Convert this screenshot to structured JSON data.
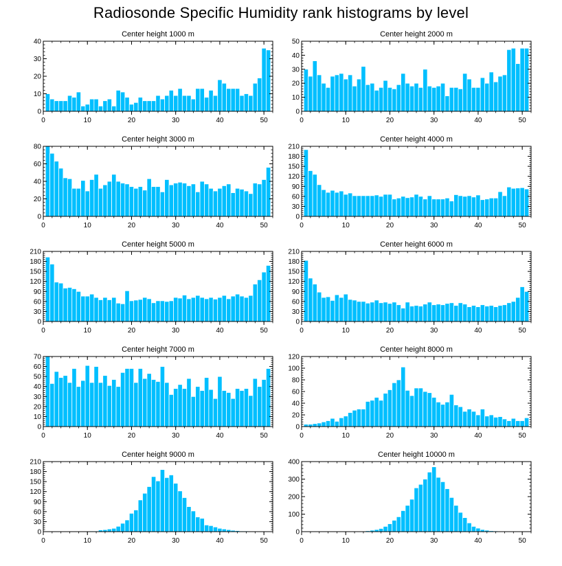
{
  "title": "Radiosonde Specific Humidity rank histograms by level",
  "colors": {
    "bar": "#00bfff",
    "bar_edge": "#ffffff",
    "axis": "#000000"
  },
  "chart_data": [
    {
      "type": "bar",
      "title": "Center height 1000 m",
      "ylim": [
        0,
        40
      ],
      "yticks": [
        0,
        10,
        20,
        30,
        40
      ],
      "xticks": [
        0,
        10,
        20,
        30,
        40,
        50
      ],
      "values": [
        10,
        7,
        6,
        6,
        6,
        9,
        8,
        11,
        3,
        4,
        7,
        7,
        3,
        6,
        7,
        3,
        12,
        11,
        8,
        4,
        5,
        8,
        6,
        6,
        6,
        9,
        7,
        9,
        12,
        9,
        13,
        9,
        9,
        7,
        13,
        13,
        8,
        12,
        9,
        18,
        16,
        13,
        13,
        13,
        9,
        10,
        9,
        16,
        19,
        36,
        35
      ]
    },
    {
      "type": "bar",
      "title": "Center height 2000 m",
      "ylim": [
        0,
        50
      ],
      "yticks": [
        0,
        10,
        20,
        30,
        40,
        50
      ],
      "xticks": [
        0,
        10,
        20,
        30,
        40,
        50
      ],
      "values": [
        30,
        25,
        36,
        26,
        20,
        17,
        25,
        26,
        27,
        23,
        26,
        18,
        23,
        32,
        19,
        20,
        15,
        17,
        22,
        17,
        16,
        19,
        27,
        20,
        18,
        20,
        17,
        30,
        18,
        17,
        18,
        20,
        11,
        17,
        17,
        16,
        27,
        23,
        17,
        17,
        24,
        20,
        28,
        21,
        25,
        26,
        44,
        45,
        34,
        45,
        45
      ]
    },
    {
      "type": "bar",
      "title": "Center height 3000 m",
      "ylim": [
        0,
        80
      ],
      "yticks": [
        0,
        20,
        40,
        60,
        80
      ],
      "xticks": [
        0,
        10,
        20,
        30,
        40,
        50
      ],
      "values": [
        80,
        72,
        63,
        55,
        44,
        43,
        32,
        32,
        41,
        29,
        42,
        48,
        32,
        36,
        40,
        48,
        40,
        38,
        37,
        34,
        32,
        34,
        30,
        43,
        34,
        34,
        28,
        42,
        36,
        38,
        39,
        38,
        35,
        37,
        28,
        40,
        37,
        32,
        29,
        32,
        35,
        37,
        27,
        32,
        31,
        29,
        26,
        38,
        37,
        42,
        56
      ]
    },
    {
      "type": "bar",
      "title": "Center height 4000 m",
      "ylim": [
        0,
        210
      ],
      "yticks": [
        0,
        30,
        60,
        90,
        120,
        150,
        180,
        210
      ],
      "xticks": [
        0,
        10,
        20,
        30,
        40,
        50
      ],
      "values": [
        200,
        137,
        126,
        95,
        80,
        72,
        78,
        72,
        76,
        66,
        70,
        62,
        62,
        62,
        62,
        62,
        64,
        60,
        66,
        66,
        52,
        55,
        60,
        56,
        58,
        66,
        60,
        52,
        62,
        52,
        52,
        52,
        55,
        46,
        65,
        62,
        60,
        62,
        58,
        64,
        50,
        52,
        55,
        55,
        74,
        62,
        88,
        84,
        85,
        86,
        82
      ]
    },
    {
      "type": "bar",
      "title": "Center height 5000 m",
      "ylim": [
        0,
        210
      ],
      "yticks": [
        0,
        30,
        60,
        90,
        120,
        150,
        180,
        210
      ],
      "xticks": [
        0,
        10,
        20,
        30,
        40,
        50
      ],
      "values": [
        193,
        172,
        118,
        115,
        100,
        102,
        98,
        90,
        76,
        76,
        82,
        72,
        65,
        72,
        65,
        72,
        55,
        53,
        92,
        62,
        64,
        66,
        72,
        68,
        56,
        62,
        62,
        60,
        62,
        72,
        70,
        79,
        68,
        72,
        78,
        72,
        68,
        72,
        67,
        72,
        78,
        68,
        76,
        82,
        76,
        72,
        78,
        112,
        125,
        148,
        168
      ]
    },
    {
      "type": "bar",
      "title": "Center height 6000 m",
      "ylim": [
        0,
        210
      ],
      "yticks": [
        0,
        30,
        60,
        90,
        120,
        150,
        180,
        210
      ],
      "xticks": [
        0,
        10,
        20,
        30,
        40,
        50
      ],
      "values": [
        183,
        130,
        112,
        88,
        72,
        74,
        63,
        80,
        72,
        82,
        66,
        64,
        60,
        60,
        55,
        58,
        64,
        56,
        58,
        54,
        58,
        50,
        40,
        58,
        46,
        48,
        46,
        52,
        58,
        50,
        52,
        50,
        54,
        56,
        48,
        56,
        52,
        44,
        48,
        44,
        50,
        46,
        48,
        44,
        48,
        50,
        56,
        60,
        72,
        104,
        90
      ]
    },
    {
      "type": "bar",
      "title": "Center height 7000 m",
      "ylim": [
        0,
        70
      ],
      "yticks": [
        0,
        10,
        20,
        30,
        40,
        50,
        60,
        70
      ],
      "xticks": [
        0,
        10,
        20,
        30,
        40,
        50
      ],
      "values": [
        70,
        43,
        55,
        49,
        51,
        44,
        58,
        40,
        46,
        61,
        44,
        60,
        44,
        51,
        41,
        47,
        40,
        54,
        58,
        58,
        44,
        58,
        48,
        53,
        47,
        45,
        60,
        44,
        32,
        38,
        42,
        38,
        48,
        30,
        40,
        36,
        49,
        37,
        28,
        50,
        36,
        34,
        28,
        38,
        36,
        38,
        31,
        48,
        40,
        47,
        58
      ]
    },
    {
      "type": "bar",
      "title": "Center height 8000 m",
      "ylim": [
        0,
        120
      ],
      "yticks": [
        0,
        20,
        40,
        60,
        80,
        100,
        120
      ],
      "xticks": [
        0,
        10,
        20,
        30,
        40,
        50
      ],
      "values": [
        4,
        4,
        5,
        6,
        8,
        10,
        14,
        9,
        15,
        18,
        24,
        28,
        30,
        30,
        43,
        45,
        50,
        45,
        57,
        63,
        75,
        80,
        102,
        62,
        53,
        66,
        66,
        60,
        58,
        50,
        42,
        38,
        42,
        55,
        37,
        34,
        26,
        30,
        26,
        20,
        30,
        18,
        20,
        16,
        17,
        13,
        10,
        14,
        10,
        10,
        15
      ]
    },
    {
      "type": "bar",
      "title": "Center height 9000 m",
      "ylim": [
        0,
        210
      ],
      "yticks": [
        0,
        30,
        60,
        90,
        120,
        150,
        180,
        210
      ],
      "xticks": [
        0,
        10,
        20,
        30,
        40,
        50
      ],
      "values": [
        0,
        0,
        0,
        0,
        0,
        0,
        0,
        0,
        1,
        1,
        2,
        2,
        5,
        6,
        8,
        10,
        16,
        25,
        35,
        55,
        65,
        95,
        115,
        135,
        165,
        152,
        186,
        162,
        170,
        145,
        122,
        102,
        75,
        62,
        44,
        40,
        20,
        18,
        14,
        10,
        8,
        6,
        4,
        3,
        2,
        2,
        1,
        1,
        1,
        1,
        1
      ]
    },
    {
      "type": "bar",
      "title": "Center height 10000 m",
      "ylim": [
        0,
        400
      ],
      "yticks": [
        0,
        100,
        200,
        300,
        400
      ],
      "xticks": [
        0,
        10,
        20,
        30,
        40,
        50
      ],
      "values": [
        0,
        0,
        0,
        0,
        0,
        0,
        0,
        0,
        0,
        0,
        1,
        2,
        2,
        3,
        5,
        8,
        12,
        18,
        30,
        45,
        65,
        85,
        120,
        150,
        185,
        250,
        270,
        300,
        340,
        370,
        310,
        285,
        245,
        195,
        150,
        110,
        80,
        50,
        30,
        20,
        12,
        8,
        5,
        4,
        3,
        2,
        2,
        2,
        1,
        1,
        1
      ]
    }
  ]
}
